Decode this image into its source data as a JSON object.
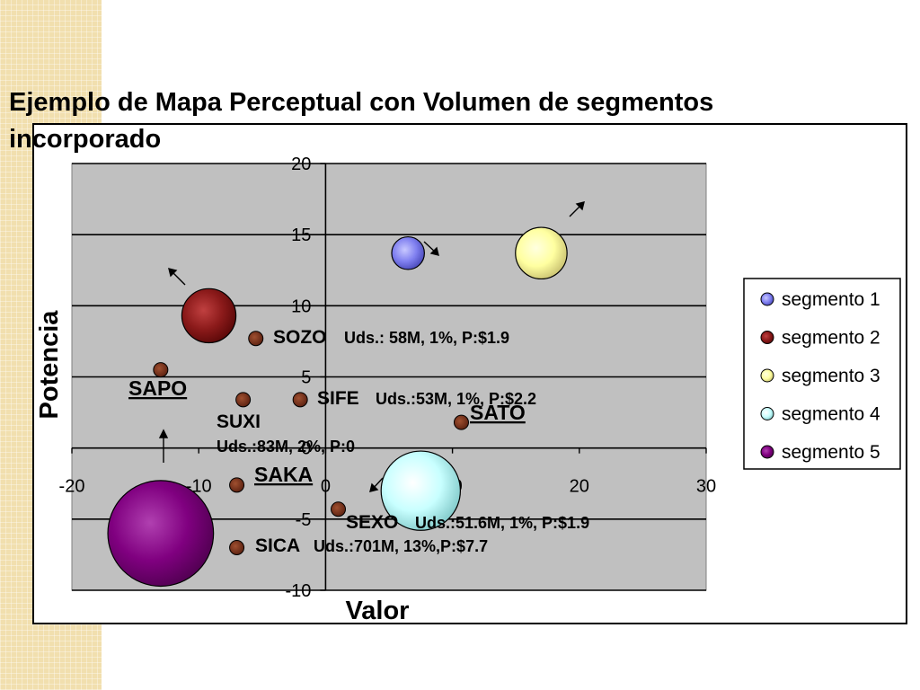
{
  "slide": {
    "title": "Ejemplo de Mapa Perceptual con Volumen  de segmentos incorporado"
  },
  "chart_data": {
    "type": "scatter",
    "subtype": "bubble",
    "title": "",
    "xlabel": "Valor",
    "ylabel": "Potencia",
    "xlim": [
      -20,
      30
    ],
    "ylim": [
      -10,
      20
    ],
    "xticks": [
      -20,
      -10,
      0,
      10,
      20,
      30
    ],
    "yticks": [
      -10,
      -5,
      0,
      5,
      10,
      15,
      20
    ],
    "grid": "horizontal",
    "plot_background": "#c0c0c0",
    "legend": {
      "position": "right",
      "entries": [
        "segmento 1",
        "segmento 2",
        "segmento 3",
        "segmento 4",
        "segmento 5"
      ]
    },
    "series": [
      {
        "name": "segmento 1",
        "color": "#8080f0",
        "points": [
          {
            "x": 6.5,
            "y": 13.7,
            "size": 2.6
          }
        ]
      },
      {
        "name": "segmento 2",
        "color": "#8b1a1a",
        "points": [
          {
            "x": -9.2,
            "y": 9.3,
            "size": 4.3
          }
        ]
      },
      {
        "name": "segmento 3",
        "color": "#ffffa0",
        "points": [
          {
            "x": 17.0,
            "y": 13.7,
            "size": 4.1
          }
        ]
      },
      {
        "name": "segmento 4",
        "color": "#c8ffff",
        "points": [
          {
            "x": 7.5,
            "y": -3.0,
            "size": 6.3
          }
        ]
      },
      {
        "name": "segmento 5",
        "color": "#800080",
        "points": [
          {
            "x": -13.0,
            "y": -6.0,
            "size": 8.4
          }
        ]
      }
    ],
    "products": [
      {
        "x": -5.5,
        "y": 7.7
      },
      {
        "x": -13.0,
        "y": 5.5
      },
      {
        "x": -6.5,
        "y": 3.4
      },
      {
        "x": -2.0,
        "y": 3.4
      },
      {
        "x": 10.7,
        "y": 1.8
      },
      {
        "x": -7.0,
        "y": -2.6
      },
      {
        "x": 1.0,
        "y": -4.3
      },
      {
        "x": -7.0,
        "y": -7.0
      }
    ],
    "annotations": [
      {
        "name": "SOZO",
        "detail": "Uds.: 58M, 1%, P:$1.9"
      },
      {
        "name": "SAPO"
      },
      {
        "name": "SIFE",
        "detail": "Uds.:53M, 1%, P:$2.2"
      },
      {
        "name": "SATO"
      },
      {
        "name": "SUXI",
        "detail": "Uds.:83M, 2%, P:0"
      },
      {
        "name": "SAKA"
      },
      {
        "name": "SEXO",
        "detail": "Uds.:51.6M, 1%, P:$1.9"
      },
      {
        "name": "SICA",
        "detail": "Uds.:701M, 13%,P:$7.7"
      }
    ]
  }
}
